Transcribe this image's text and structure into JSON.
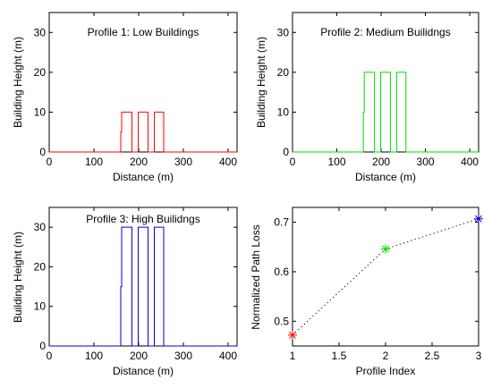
{
  "chart_data": [
    {
      "type": "line",
      "title": "Profile 1: Low Buildings",
      "xlabel": "Distance (m)",
      "ylabel": "Building Height (m)",
      "xlim": [
        0,
        420
      ],
      "ylim": [
        0,
        35
      ],
      "xticks": [
        0,
        100,
        200,
        300,
        400
      ],
      "yticks": [
        0,
        10,
        20,
        30
      ],
      "color": "#ff0000",
      "x": [
        0,
        160,
        160,
        162,
        162,
        185,
        185,
        199,
        199,
        221,
        221,
        235,
        235,
        256,
        256,
        420
      ],
      "y": [
        0,
        0,
        5,
        5,
        10,
        10,
        0,
        0,
        10,
        10,
        0,
        0,
        10,
        10,
        0,
        0
      ]
    },
    {
      "type": "line",
      "title": "Profile 2: Medium Builidngs",
      "xlabel": "Distance (m)",
      "ylabel": "Building Height (m)",
      "xlim": [
        0,
        420
      ],
      "ylim": [
        0,
        35
      ],
      "xticks": [
        0,
        100,
        200,
        300,
        400
      ],
      "yticks": [
        0,
        10,
        20,
        30
      ],
      "color": "#00dd00",
      "x": [
        0,
        160,
        160,
        162,
        162,
        185,
        185,
        199,
        199,
        221,
        221,
        235,
        235,
        256,
        256,
        420
      ],
      "y": [
        0,
        0,
        10,
        10,
        20,
        20,
        0,
        0,
        20,
        20,
        0,
        0,
        20,
        20,
        0,
        0
      ]
    },
    {
      "type": "line",
      "title": "Profile 3: High Builidngs",
      "xlabel": "Distance (m)",
      "ylabel": "Building Height (m)",
      "xlim": [
        0,
        420
      ],
      "ylim": [
        0,
        35
      ],
      "xticks": [
        0,
        100,
        200,
        300,
        400
      ],
      "yticks": [
        0,
        10,
        20,
        30
      ],
      "color": "#0000cc",
      "x": [
        0,
        160,
        160,
        162,
        162,
        185,
        185,
        199,
        199,
        221,
        221,
        235,
        235,
        256,
        256,
        420
      ],
      "y": [
        0,
        0,
        15,
        15,
        30,
        30,
        0,
        0,
        30,
        30,
        0,
        0,
        30,
        30,
        0,
        0
      ]
    },
    {
      "type": "scatter",
      "title": "",
      "xlabel": "Profile Index",
      "ylabel": "Normalized Path Loss",
      "xlim": [
        1,
        3
      ],
      "ylim": [
        0.45,
        0.73
      ],
      "xticks": [
        1,
        1.5,
        2,
        2.5,
        3
      ],
      "yticks": [
        0.5,
        0.6,
        0.7
      ],
      "line_style": "dotted",
      "line_color": "#000000",
      "x": [
        1,
        2,
        3
      ],
      "y": [
        0.472,
        0.646,
        0.707
      ],
      "marker": "asterisk",
      "marker_colors": [
        "#ff0000",
        "#00dd00",
        "#0000cc"
      ]
    }
  ]
}
